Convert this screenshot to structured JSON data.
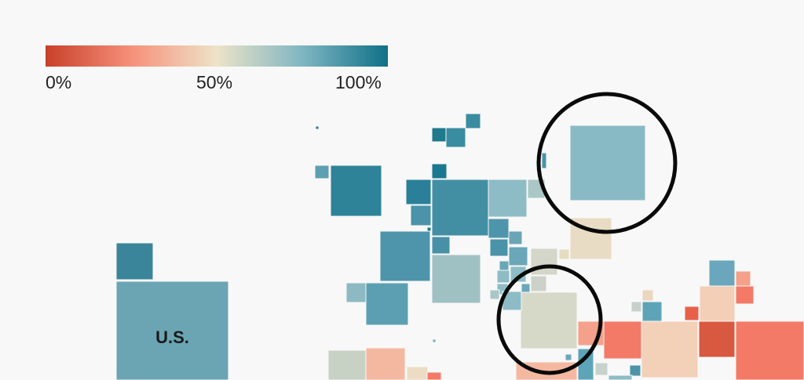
{
  "chart_data": {
    "type": "heatmap",
    "title": "",
    "legend": {
      "labels": [
        "0%",
        "50%",
        "100%"
      ],
      "range": [
        0,
        100
      ],
      "color_stops": [
        "#c8402a",
        "#f6907a",
        "#ede3c8",
        "#7fb6c2",
        "#0f7088"
      ],
      "placement": "top-left"
    },
    "annotations": {
      "us_label": "U.S.",
      "highlight_circles": 2
    }
  }
}
